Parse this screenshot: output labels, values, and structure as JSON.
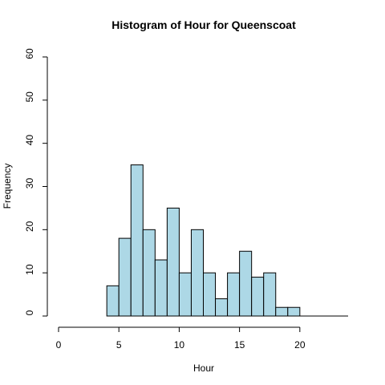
{
  "chart_data": {
    "type": "bar",
    "title": "Histogram of Hour for Queenscoat",
    "xlabel": "Hour",
    "ylabel": "Frequency",
    "bin_width": 1,
    "bins": [
      {
        "start": 4,
        "end": 5,
        "count": 7
      },
      {
        "start": 5,
        "end": 6,
        "count": 18
      },
      {
        "start": 6,
        "end": 7,
        "count": 35
      },
      {
        "start": 7,
        "end": 8,
        "count": 20
      },
      {
        "start": 8,
        "end": 9,
        "count": 13
      },
      {
        "start": 9,
        "end": 10,
        "count": 25
      },
      {
        "start": 10,
        "end": 11,
        "count": 10
      },
      {
        "start": 11,
        "end": 12,
        "count": 20
      },
      {
        "start": 12,
        "end": 13,
        "count": 10
      },
      {
        "start": 13,
        "end": 14,
        "count": 4
      },
      {
        "start": 14,
        "end": 15,
        "count": 10
      },
      {
        "start": 15,
        "end": 16,
        "count": 15
      },
      {
        "start": 16,
        "end": 17,
        "count": 9
      },
      {
        "start": 17,
        "end": 18,
        "count": 10
      },
      {
        "start": 18,
        "end": 19,
        "count": 2
      },
      {
        "start": 19,
        "end": 20,
        "count": 2
      }
    ],
    "xlim": [
      0,
      24
    ],
    "ylim": [
      0,
      60
    ],
    "xticks": [
      0,
      5,
      10,
      15,
      20
    ],
    "yticks": [
      0,
      10,
      20,
      30,
      40,
      50,
      60
    ],
    "bar_color": "#ADD8E6",
    "grid": false
  }
}
